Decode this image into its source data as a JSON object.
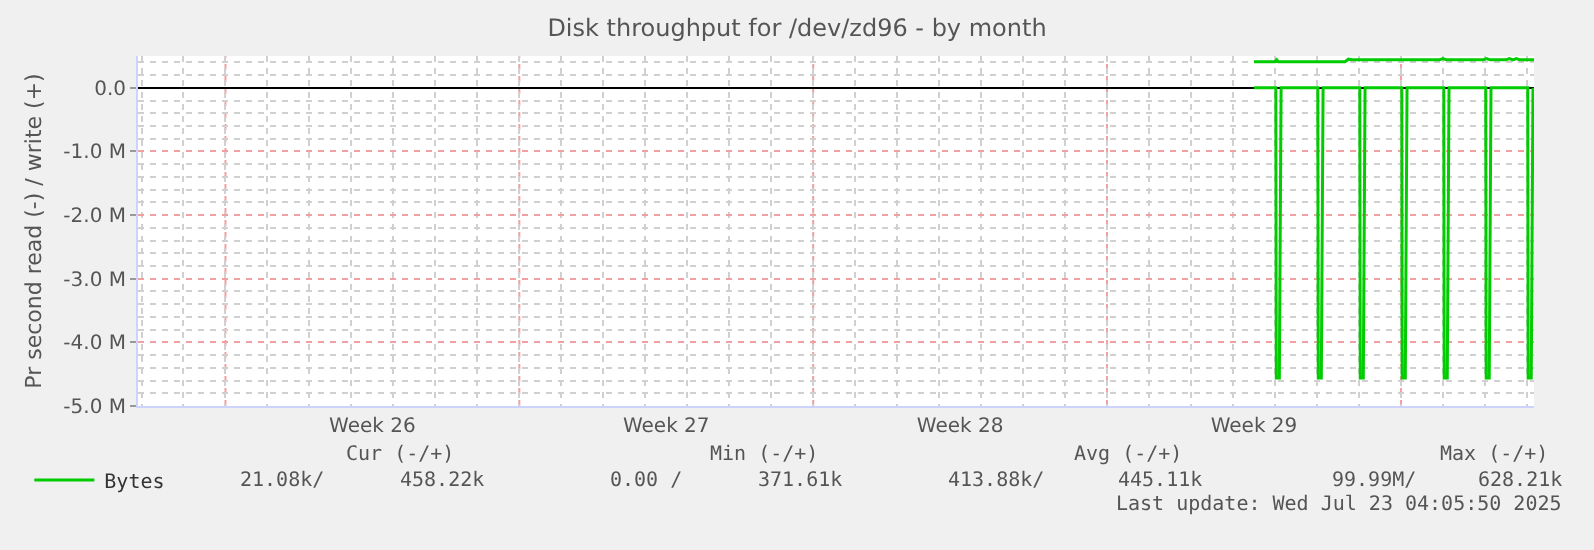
{
  "chart_data": {
    "type": "line",
    "title": "Disk throughput for /dev/zd96 - by month",
    "ylabel": "Pr second read (-) / write (+)",
    "xlim": [
      "2025-06-19T22:00",
      "2025-07-23T04:05"
    ],
    "xticks": [
      {
        "value": "2025-06-22",
        "label": null
      },
      {
        "value": "2025-06-29",
        "label": null
      },
      {
        "value": "2025-07-06",
        "label": null
      },
      {
        "value": "2025-07-13",
        "label": null
      },
      {
        "value": "2025-07-20",
        "label": null
      },
      {
        "value": "2025-06-25T12:00",
        "label": "Week 26"
      },
      {
        "value": "2025-07-02T12:00",
        "label": "Week 27"
      },
      {
        "value": "2025-07-09T12:00",
        "label": "Week 28"
      },
      {
        "value": "2025-07-16T12:00",
        "label": "Week 29"
      }
    ],
    "ylim": [
      -5.0,
      0.5
    ],
    "yticks": [
      {
        "value": 0,
        "label": "0.0"
      },
      {
        "value": -1,
        "label": "-1.0 M"
      },
      {
        "value": -2,
        "label": "-2.0 M"
      },
      {
        "value": -3,
        "label": "-3.0 M"
      },
      {
        "value": -4,
        "label": "-4.0 M"
      },
      {
        "value": -5,
        "label": "-5.0 M"
      }
    ],
    "grid": true,
    "legend": "bottom left",
    "marker": "none",
    "line_style": "solid",
    "series": [
      {
        "name": "Bytes",
        "color": "#00cc00",
        "x": [
          "2025-07-16T12:00",
          "2025-07-17T00:00",
          "2025-07-17T01:00",
          "2025-07-17T02:00",
          "2025-07-18T16:00",
          "2025-07-18T17:00",
          "2025-07-18T18:00",
          "2025-07-18T20:00",
          "2025-07-20T22:00",
          "2025-07-21T00:00",
          "2025-07-21T02:00",
          "2025-07-21T23:00",
          "2025-07-22T01:00",
          "2025-07-22T03:00",
          "2025-07-22T12:00",
          "2025-07-22T14:00",
          "2025-07-22T16:00",
          "2025-07-22T18:00",
          "2025-07-22T20:00",
          "2025-07-23T04:05"
        ],
        "values": [
          0.41,
          0.41,
          0.44,
          0.41,
          0.41,
          0.43,
          0.45,
          0.44,
          0.44,
          0.46,
          0.44,
          0.44,
          0.46,
          0.44,
          0.44,
          0.46,
          0.44,
          0.46,
          0.44,
          0.44
        ]
      },
      {
        "color": "#00cc00",
        "x": [
          "2025-07-16T12:00",
          "2025-07-17T00:30",
          "2025-07-17T00:45",
          "2025-07-17T02:30",
          "2025-07-17T03:30",
          "2025-07-18T00:30",
          "2025-07-18T00:45",
          "2025-07-18T02:30",
          "2025-07-18T03:30",
          "2025-07-19T00:30",
          "2025-07-19T00:45",
          "2025-07-19T02:30",
          "2025-07-19T03:30",
          "2025-07-20T00:30",
          "2025-07-20T00:45",
          "2025-07-20T02:30",
          "2025-07-20T03:30",
          "2025-07-21T00:30",
          "2025-07-21T00:45",
          "2025-07-21T02:30",
          "2025-07-21T03:30",
          "2025-07-22T00:30",
          "2025-07-22T00:45",
          "2025-07-22T02:30",
          "2025-07-22T03:30",
          "2025-07-23T00:30",
          "2025-07-23T00:45",
          "2025-07-23T02:30",
          "2025-07-23T03:30"
        ],
        "values": [
          0,
          0,
          -4.56,
          -4.56,
          0,
          0,
          -4.56,
          -4.56,
          0,
          0,
          -4.56,
          -4.56,
          0,
          0,
          -4.56,
          -4.56,
          0,
          0,
          -4.56,
          -4.56,
          0,
          0,
          -4.56,
          -4.56,
          0,
          0,
          -4.56,
          -4.56,
          0
        ]
      }
    ],
    "annotations": [
      "Cur (-/+)",
      "Min (-/+)",
      "Avg (-/+)",
      "Max (-/+)",
      "21.08k/",
      "458.22k",
      "0.00 /",
      "371.61k",
      "413.88k/",
      "445.11k",
      "99.99M/",
      "628.21k",
      "Last update: Wed Jul 23 04:05:50 2025"
    ]
  }
}
